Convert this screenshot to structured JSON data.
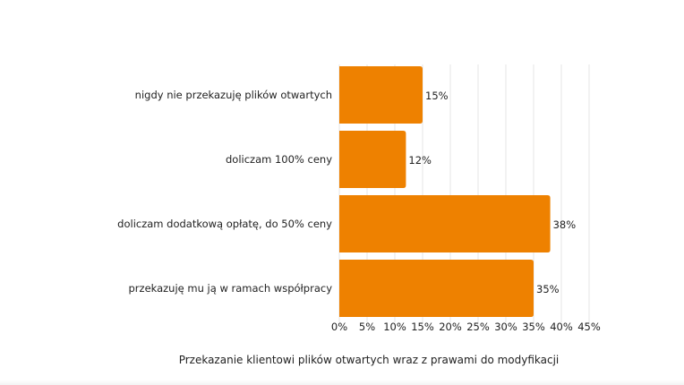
{
  "chart_data": {
    "type": "bar",
    "orientation": "horizontal",
    "categories": [
      "nigdy nie przekazuję plików otwartych",
      "doliczam 100% ceny",
      "doliczam dodatkową opłatę, do 50% ceny",
      "przekazuję mu ją w ramach współpracy"
    ],
    "values": [
      15,
      12,
      38,
      35
    ],
    "value_labels": [
      "15%",
      "12%",
      "38%",
      "35%"
    ],
    "xlim": [
      0,
      45
    ],
    "ticks": [
      0,
      5,
      10,
      15,
      20,
      25,
      30,
      35,
      40,
      45
    ],
    "tick_labels": [
      "0%",
      "5%",
      "10%",
      "15%",
      "20%",
      "25%",
      "30%",
      "35%",
      "40%",
      "45%"
    ],
    "xlabel": "Przekazanie klientowi plików otwartych wraz z prawami do modyfikacji",
    "grid": true,
    "bar_color": "#ee8100",
    "grid_color": "#e6e6e6",
    "text_color": "#222222"
  }
}
